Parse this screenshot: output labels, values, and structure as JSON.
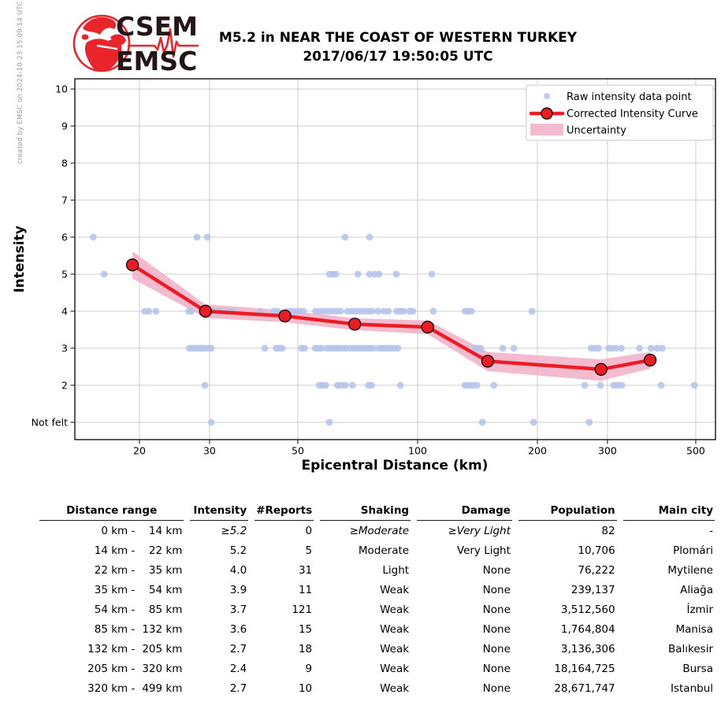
{
  "watermark": "created by EMSC on 2024-10-23 15:09:14 UTC",
  "logo": {
    "line1": "CSEM",
    "line2": "EMSC"
  },
  "title": {
    "line1": "M5.2 in NEAR THE COAST OF WESTERN TURKEY",
    "line2": "2017/06/17 19:50:05 UTC"
  },
  "chart_data": {
    "type": "scatter",
    "title": "",
    "xlabel": "Epicentral Distance (km)",
    "ylabel": "Intensity",
    "x_scale": "log",
    "x_ticks": [
      20,
      30,
      50,
      100,
      200,
      300,
      500
    ],
    "x_range": [
      13.8,
      560
    ],
    "y_tick_values": [
      10,
      9,
      8,
      7,
      6,
      5,
      4,
      3,
      2,
      1
    ],
    "y_tick_labels": [
      "10",
      "9",
      "8",
      "7",
      "6",
      "5",
      "4",
      "3",
      "2",
      "Not felt"
    ],
    "y_range": [
      0.53,
      10.28
    ],
    "grid": true,
    "legend_position": "upper right",
    "legend": [
      "Raw intensity data point",
      "Corrected Intensity Curve",
      "Uncertainty"
    ],
    "colors": {
      "raw_point": "#b4c3eb",
      "curve": "#ed1c24",
      "uncertainty_band": "#f2b4cb",
      "grid": "#cccccc"
    },
    "raw_points_by_intensity": {
      "6": [
        15.3,
        27.9,
        29.6,
        65.7,
        75.7
      ],
      "5": [
        16.3,
        60,
        61.1,
        62.2,
        70.8,
        75.7,
        77.9,
        80,
        88.4,
        108.6
      ],
      "4": [
        20.6,
        21.1,
        22,
        26.6,
        27,
        29.3,
        30.8,
        31.5,
        31.9,
        33.4,
        34.1,
        40.2,
        43.5,
        44.5,
        47.2,
        48.3,
        49.4,
        50.5,
        51.6,
        55.4,
        56.8,
        58.2,
        59.6,
        61.1,
        62.6,
        64.1,
        66.7,
        68.3,
        69.9,
        71.6,
        73.3,
        75.1,
        76.9,
        79.6,
        82.4,
        84.4,
        88.6,
        90.5,
        92.2,
        95.5,
        97.3,
        109.5,
        131.5,
        133.9,
        136.4,
        193.8
      ],
      "3": [
        26.7,
        27.2,
        27.7,
        28.2,
        28.7,
        29.2,
        29.8,
        30.3,
        41.3,
        44.1,
        44.9,
        45.7,
        51.1,
        52,
        55.3,
        56.3,
        57.4,
        59.2,
        60.3,
        61.4,
        62.6,
        63.7,
        64.9,
        66.1,
        67.9,
        69.2,
        70.5,
        71.8,
        73.1,
        74.5,
        75.9,
        77.3,
        79.8,
        81.3,
        82.8,
        84.3,
        85.9,
        87.4,
        89.2,
        138.9,
        141.5,
        144.1,
        163.8,
        174.6,
        273,
        279,
        285,
        302,
        308,
        315,
        325,
        361,
        386,
        400,
        412
      ],
      "2": [
        29.2,
        56.6,
        57.6,
        58.7,
        62.9,
        64.3,
        65.8,
        68.6,
        75.2,
        76.6,
        90.5,
        131.5,
        134.5,
        137.5,
        140.9,
        155.4,
        263,
        288,
        311,
        318,
        326,
        409,
        496
      ],
      "1": [
        30.3,
        60,
        145.5,
        195.6,
        270
      ]
    },
    "corrected_curve": {
      "distance_km": [
        19.2,
        29.3,
        46.4,
        69.5,
        106,
        150,
        289,
        384
      ],
      "intensity": [
        5.25,
        4.0,
        3.87,
        3.65,
        3.57,
        2.65,
        2.43,
        2.68
      ]
    },
    "uncertainty_band": {
      "distance_km": [
        19.2,
        29.3,
        46.4,
        69.5,
        106,
        150,
        289,
        384
      ],
      "upper": [
        5.62,
        4.18,
        4.03,
        3.81,
        3.75,
        2.9,
        2.7,
        2.9
      ],
      "lower": [
        4.88,
        3.82,
        3.7,
        3.49,
        3.38,
        2.38,
        2.12,
        2.45
      ]
    }
  },
  "table": {
    "headers": [
      "Distance range",
      "Intensity",
      "#Reports",
      "Shaking",
      "Damage",
      "Population",
      "Main city"
    ],
    "rows": [
      {
        "from": "0 km -",
        "to": "14 km",
        "intensity": "≥5.2",
        "reports": "0",
        "shaking": "≥Moderate",
        "damage": "≥Very Light",
        "population": "82",
        "main_city": "-",
        "approx": true
      },
      {
        "from": "14 km -",
        "to": "22 km",
        "intensity": "5.2",
        "reports": "5",
        "shaking": "Moderate",
        "damage": "Very Light",
        "population": "10,706",
        "main_city": "Plomári",
        "approx": false
      },
      {
        "from": "22 km -",
        "to": "35 km",
        "intensity": "4.0",
        "reports": "31",
        "shaking": "Light",
        "damage": "None",
        "population": "76,222",
        "main_city": "Mytilene",
        "approx": false
      },
      {
        "from": "35 km -",
        "to": "54 km",
        "intensity": "3.9",
        "reports": "11",
        "shaking": "Weak",
        "damage": "None",
        "population": "239,137",
        "main_city": "Aliağa",
        "approx": false
      },
      {
        "from": "54 km -",
        "to": "85 km",
        "intensity": "3.7",
        "reports": "121",
        "shaking": "Weak",
        "damage": "None",
        "population": "3,512,560",
        "main_city": "İzmir",
        "approx": false
      },
      {
        "from": "85 km -",
        "to": "132 km",
        "intensity": "3.6",
        "reports": "15",
        "shaking": "Weak",
        "damage": "None",
        "population": "1,764,804",
        "main_city": "Manisa",
        "approx": false
      },
      {
        "from": "132 km -",
        "to": "205 km",
        "intensity": "2.7",
        "reports": "18",
        "shaking": "Weak",
        "damage": "None",
        "population": "3,136,306",
        "main_city": "Balıkesir",
        "approx": false
      },
      {
        "from": "205 km -",
        "to": "320 km",
        "intensity": "2.4",
        "reports": "9",
        "shaking": "Weak",
        "damage": "None",
        "population": "18,164,725",
        "main_city": "Bursa",
        "approx": false
      },
      {
        "from": "320 km -",
        "to": "499 km",
        "intensity": "2.7",
        "reports": "10",
        "shaking": "Weak",
        "damage": "None",
        "population": "28,671,747",
        "main_city": "Istanbul",
        "approx": false
      }
    ]
  }
}
